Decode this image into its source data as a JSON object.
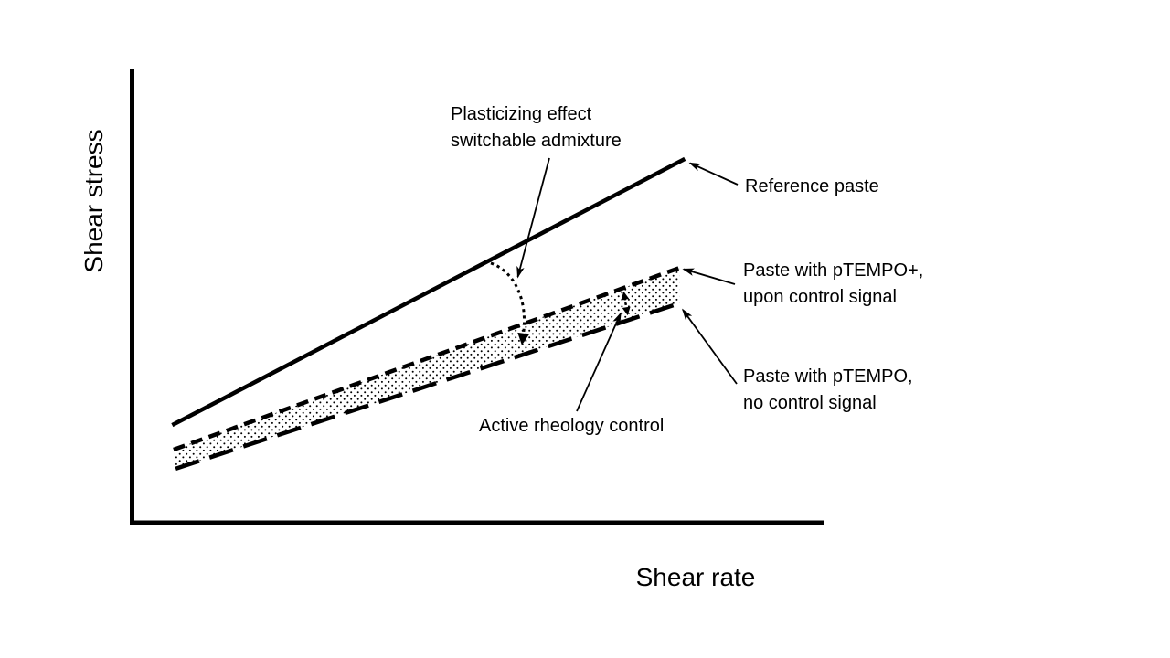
{
  "figure": {
    "background": "#ffffff",
    "ink": "#000000",
    "x_axis_label": "Shear rate",
    "y_axis_label": "Shear stress"
  },
  "annotations": {
    "plasticizing_line1": "Plasticizing effect",
    "plasticizing_line2": "switchable admixture",
    "reference_label": "Reference paste",
    "ptempo_plus_line1": "Paste with pTEMPO+,",
    "ptempo_plus_line2": "upon control signal",
    "ptempo_line1": "Paste with pTEMPO,",
    "ptempo_line2": "no control signal",
    "active_rheology_label": "Active rheology control"
  },
  "chart_data": {
    "type": "line",
    "title": "",
    "xlabel": "Shear rate",
    "ylabel": "Shear stress",
    "grid": false,
    "axis_ticks": [],
    "x_range": [
      0,
      1
    ],
    "y_range": [
      0,
      1
    ],
    "series": [
      {
        "name": "Reference paste",
        "line_style": "solid",
        "x": [
          0.061,
          0.799
        ],
        "y": [
          0.215,
          0.801
        ]
      },
      {
        "name": "Paste with pTEMPO+, upon control signal",
        "line_style": "short-dash",
        "x": [
          0.063,
          0.791
        ],
        "y": [
          0.161,
          0.561
        ]
      },
      {
        "name": "Paste with pTEMPO, no control signal",
        "line_style": "long-dash",
        "x": [
          0.066,
          0.791
        ],
        "y": [
          0.119,
          0.483
        ]
      }
    ],
    "band": {
      "between_series": [
        1,
        2
      ],
      "fill": "stipple-dots"
    },
    "arrow_annotations": [
      {
        "label": "Plasticizing effect switchable admixture",
        "style": "dotted curved arrow from solid line down to long-dash line"
      },
      {
        "label": "Active rheology control",
        "style": "dotted double-headed arrow spanning the stippled band"
      },
      {
        "label": "Reference paste",
        "style": "leader arrow to solid line end"
      },
      {
        "label": "Paste with pTEMPO+, upon control signal",
        "style": "leader arrow to short-dash line end"
      },
      {
        "label": "Paste with pTEMPO, no control signal",
        "style": "leader arrow to long-dash line end"
      }
    ]
  }
}
